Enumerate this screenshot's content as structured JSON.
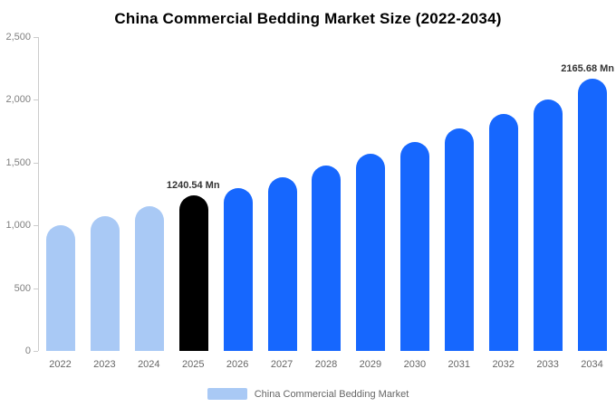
{
  "title": "China Commercial Bedding Market Size (2022-2034)",
  "legend": {
    "label": "China Commercial Bedding Market",
    "swatch_color": "#A9C9F5"
  },
  "colors": {
    "historical": "#A9C9F5",
    "highlight": "#000000",
    "forecast": "#1667FE"
  },
  "y_axis": {
    "ticks": [
      "2,500",
      "2,000",
      "1,500",
      "1,000",
      "500",
      "0"
    ]
  },
  "chart_data": {
    "type": "bar",
    "title": "China Commercial Bedding Market Size (2022-2034)",
    "xlabel": "",
    "ylabel": "",
    "ylim": [
      0,
      2500
    ],
    "grid": false,
    "legend_position": "bottom",
    "categories": [
      "2022",
      "2023",
      "2024",
      "2025",
      "2026",
      "2027",
      "2028",
      "2029",
      "2030",
      "2031",
      "2032",
      "2033",
      "2034"
    ],
    "values": [
      1000,
      1075,
      1150,
      1240.54,
      1300,
      1385,
      1475,
      1570,
      1665,
      1770,
      1890,
      2005,
      2165.68
    ],
    "roles": [
      "historical",
      "historical",
      "historical",
      "highlight",
      "forecast",
      "forecast",
      "forecast",
      "forecast",
      "forecast",
      "forecast",
      "forecast",
      "forecast",
      "forecast"
    ],
    "annotations": [
      {
        "category": "2025",
        "text": "1240.54 Mn",
        "align": "center"
      },
      {
        "category": "2034",
        "text": "2165.68 Mn",
        "align": "right"
      }
    ]
  }
}
